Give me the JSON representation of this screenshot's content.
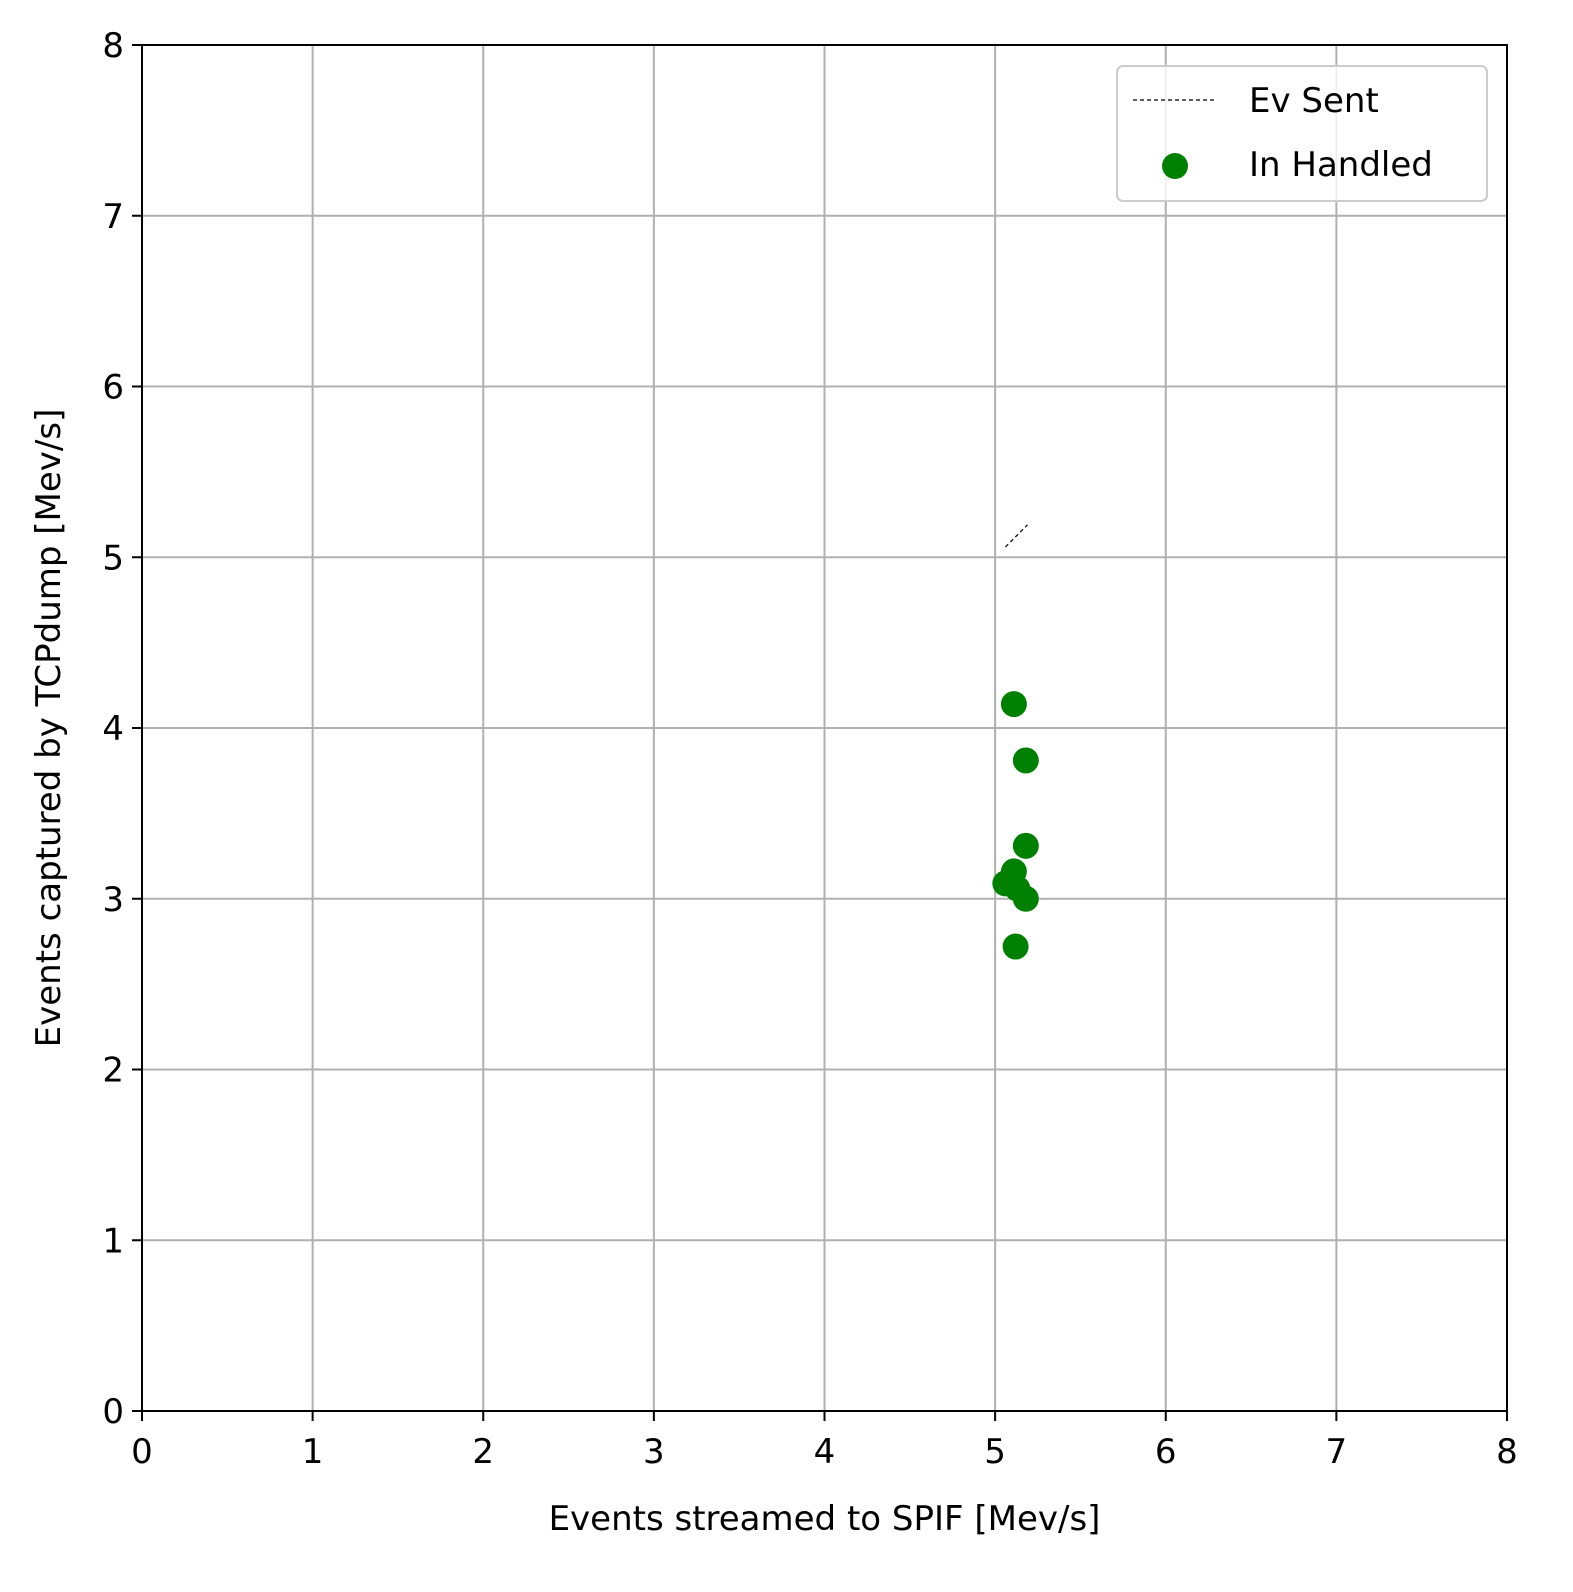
{
  "chart_data": {
    "type": "scatter",
    "title": "",
    "xlabel": "Events streamed to SPIF [Mev/s]",
    "ylabel": "Events captured by TCPdump [Mev/s]",
    "xlim": [
      0,
      8
    ],
    "ylim": [
      0,
      8
    ],
    "xticks": [
      "0",
      "1",
      "2",
      "3",
      "4",
      "5",
      "6",
      "7",
      "8"
    ],
    "yticks": [
      "0",
      "1",
      "2",
      "3",
      "4",
      "5",
      "6",
      "7",
      "8"
    ],
    "grid": true,
    "legend": {
      "position": "top-right"
    },
    "series": [
      {
        "name": "Ev Sent",
        "kind": "line",
        "style": "dashed",
        "color": "#000000",
        "x": [
          5.06,
          5.19
        ],
        "y": [
          5.06,
          5.19
        ]
      },
      {
        "name": "In Handled",
        "kind": "scatter",
        "color": "#008000",
        "x": [
          5.11,
          5.18,
          5.18,
          5.11,
          5.06,
          5.13,
          5.18,
          5.12
        ],
        "y": [
          4.14,
          3.81,
          3.31,
          3.16,
          3.09,
          3.06,
          3.0,
          2.72
        ]
      }
    ]
  }
}
